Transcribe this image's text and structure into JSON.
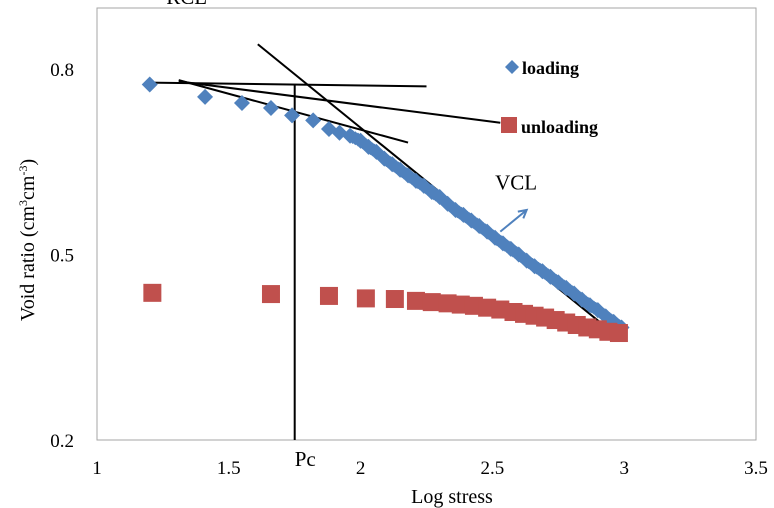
{
  "chart_data": {
    "type": "scatter",
    "xlabel": "Log stress",
    "ylabel_main": "Void ratio (cm",
    "ylabel_sup1": "3",
    "ylabel_mid": "cm",
    "ylabel_sup2": "-3",
    "ylabel_end": ")",
    "xlim": [
      1,
      3.5
    ],
    "ylim": [
      0.2,
      0.95
    ],
    "x_ticks": [
      1,
      1.5,
      2,
      2.5,
      3,
      3.5
    ],
    "x_tick_labels": [
      "1",
      "1.5",
      "2",
      "2.5",
      "3",
      "3.5"
    ],
    "y_ticks": [
      0.2,
      0.5,
      0.8
    ],
    "y_tick_labels": [
      "0.2",
      "0.5",
      "0.8"
    ],
    "grid": false,
    "legend_position": "top-right",
    "series": [
      {
        "name": "loading",
        "marker": "diamond",
        "color": "#4f81bd",
        "x": [
          1.2,
          1.41,
          1.55,
          1.66,
          1.74,
          1.82,
          1.88,
          1.92,
          1.96,
          2.0,
          2.03,
          2.06,
          2.09,
          2.12,
          2.15,
          2.18,
          2.21,
          2.24,
          2.27,
          2.3,
          2.33,
          2.36,
          2.39,
          2.42,
          2.45,
          2.48,
          2.51,
          2.54,
          2.57,
          2.6,
          2.63,
          2.66,
          2.69,
          2.72,
          2.75,
          2.78,
          2.81,
          2.84,
          2.87,
          2.9,
          2.93,
          2.96,
          2.99
        ],
        "y": [
          0.775,
          0.755,
          0.745,
          0.737,
          0.725,
          0.717,
          0.703,
          0.697,
          0.692,
          0.684,
          0.674,
          0.666,
          0.655,
          0.646,
          0.637,
          0.628,
          0.619,
          0.611,
          0.601,
          0.593,
          0.582,
          0.572,
          0.564,
          0.555,
          0.546,
          0.537,
          0.527,
          0.518,
          0.509,
          0.5,
          0.49,
          0.481,
          0.473,
          0.464,
          0.455,
          0.446,
          0.437,
          0.427,
          0.418,
          0.41,
          0.4,
          0.391,
          0.382
        ]
      },
      {
        "name": "unloading",
        "marker": "square",
        "color": "#c0504d",
        "x": [
          1.21,
          1.66,
          1.88,
          2.02,
          2.13,
          2.21,
          2.27,
          2.33,
          2.38,
          2.43,
          2.48,
          2.53,
          2.58,
          2.62,
          2.66,
          2.7,
          2.74,
          2.78,
          2.82,
          2.86,
          2.9,
          2.94,
          2.98
        ],
        "y": [
          0.438,
          0.436,
          0.433,
          0.429,
          0.428,
          0.425,
          0.423,
          0.421,
          0.419,
          0.417,
          0.414,
          0.411,
          0.407,
          0.404,
          0.401,
          0.398,
          0.394,
          0.39,
          0.386,
          0.382,
          0.379,
          0.375,
          0.373
        ]
      }
    ],
    "lines": [
      {
        "x1": 1.2,
        "y1": 0.778,
        "x2": 2.25,
        "y2": 0.772
      },
      {
        "x1": 1.31,
        "y1": 0.78,
        "x2": 2.53,
        "y2": 0.713
      },
      {
        "x1": 1.31,
        "y1": 0.782,
        "x2": 2.18,
        "y2": 0.681
      },
      {
        "x1": 1.61,
        "y1": 0.84,
        "x2": 2.95,
        "y2": 0.376
      },
      {
        "x1": 1.75,
        "y1": 0.775,
        "x2": 1.75,
        "y2": 0.2
      }
    ],
    "vcl_arrow": {
      "x1": 2.53,
      "y1": 0.537,
      "x2": 2.63,
      "y2": 0.572
    },
    "annotations": [
      {
        "text": "RCL",
        "x": 1.34,
        "y": 0.905
      },
      {
        "text": "VCL",
        "x": 2.59,
        "y": 0.605
      },
      {
        "text": "Pc",
        "x": 1.79,
        "y": 0.158
      }
    ]
  }
}
